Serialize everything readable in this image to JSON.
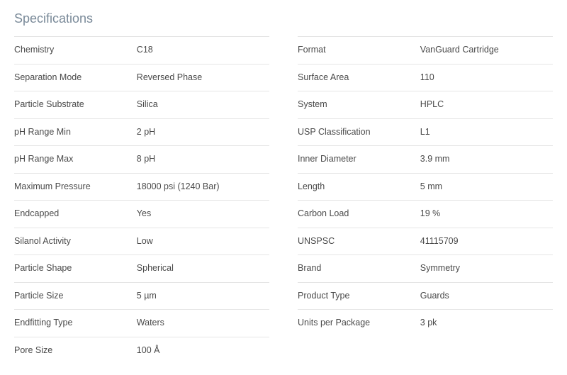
{
  "title": "Specifications",
  "left": [
    {
      "label": "Chemistry",
      "value": "C18"
    },
    {
      "label": "Separation Mode",
      "value": "Reversed Phase"
    },
    {
      "label": "Particle Substrate",
      "value": "Silica"
    },
    {
      "label": "pH Range Min",
      "value": "2 pH"
    },
    {
      "label": "pH Range Max",
      "value": "8 pH"
    },
    {
      "label": "Maximum Pressure",
      "value": "18000 psi (1240 Bar)"
    },
    {
      "label": "Endcapped",
      "value": "Yes"
    },
    {
      "label": "Silanol Activity",
      "value": "Low"
    },
    {
      "label": "Particle Shape",
      "value": "Spherical"
    },
    {
      "label": "Particle Size",
      "value": "5 µm"
    },
    {
      "label": "Endfitting Type",
      "value": "Waters"
    },
    {
      "label": "Pore Size",
      "value": "100 Å"
    }
  ],
  "right": [
    {
      "label": "Format",
      "value": "VanGuard Cartridge"
    },
    {
      "label": "Surface Area",
      "value": "110"
    },
    {
      "label": "System",
      "value": "HPLC"
    },
    {
      "label": "USP Classification",
      "value": "L1"
    },
    {
      "label": "Inner Diameter",
      "value": "3.9 mm"
    },
    {
      "label": "Length",
      "value": "5 mm"
    },
    {
      "label": "Carbon Load",
      "value": "19 %"
    },
    {
      "label": "UNSPSC",
      "value": "41115709"
    },
    {
      "label": "Brand",
      "value": "Symmetry"
    },
    {
      "label": "Product Type",
      "value": "Guards"
    },
    {
      "label": "Units per Package",
      "value": "3 pk"
    }
  ]
}
